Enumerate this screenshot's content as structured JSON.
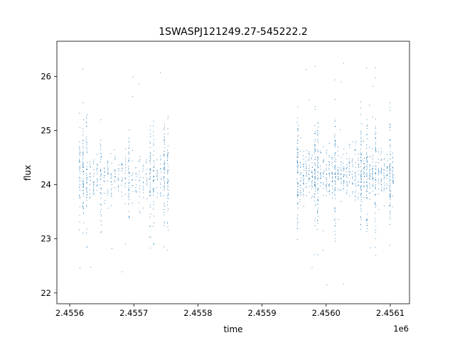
{
  "chart_data": {
    "type": "scatter",
    "title": "1SWASPJ121249.27-545222.2",
    "xlabel": "time",
    "ylabel": "flux",
    "x_offset_label": "1e6",
    "xlim": [
      2.45558,
      2.45613
    ],
    "ylim": [
      21.8,
      26.65
    ],
    "x_ticks": [
      "2.4556",
      "2.4557",
      "2.4558",
      "2.4559",
      "2.4560",
      "2.4561"
    ],
    "x_tick_values": [
      2.4556,
      2.4557,
      2.4558,
      2.4559,
      2.456,
      2.4561
    ],
    "y_ticks": [
      "22",
      "23",
      "24",
      "25",
      "26"
    ],
    "y_tick_values": [
      22,
      23,
      24,
      25,
      26
    ],
    "grid": false,
    "legend": "none",
    "marker_color": "#1f77b4",
    "series": [
      {
        "x_range": [
          2.455615,
          2.455753
        ],
        "x_step": 5.5e-06,
        "center": 24.15,
        "spread": 0.45,
        "wide_spread": 1.0,
        "points_per_column": 70
      },
      {
        "x_range": [
          2.455955,
          2.456106
        ],
        "x_step": 4.5e-06,
        "center": 24.2,
        "spread": 0.45,
        "wide_spread": 1.05,
        "points_per_column": 90
      }
    ]
  }
}
